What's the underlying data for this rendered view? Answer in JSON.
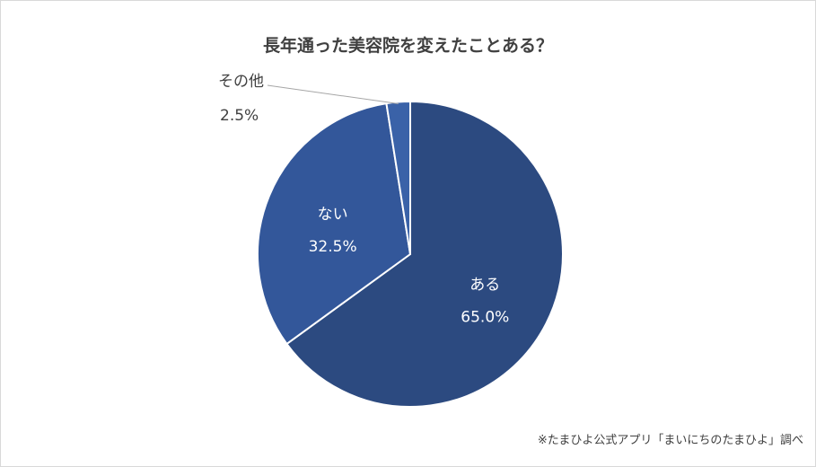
{
  "chart_data": {
    "type": "pie",
    "title": "長年通った美容院を変えたことある？",
    "slices": [
      {
        "label": "ある",
        "value": 65.0,
        "value_label": "65.0%",
        "color": "#2c4a80"
      },
      {
        "label": "ない",
        "value": 32.5,
        "value_label": "32.5%",
        "color": "#33579a"
      },
      {
        "label": "その他",
        "value": 2.5,
        "value_label": "2.5%",
        "color": "#3a62a8"
      }
    ],
    "start": "top",
    "direction": "clockwise",
    "source": "※たまひよ公式アプリ「まいにちのたまひよ」調べ"
  }
}
